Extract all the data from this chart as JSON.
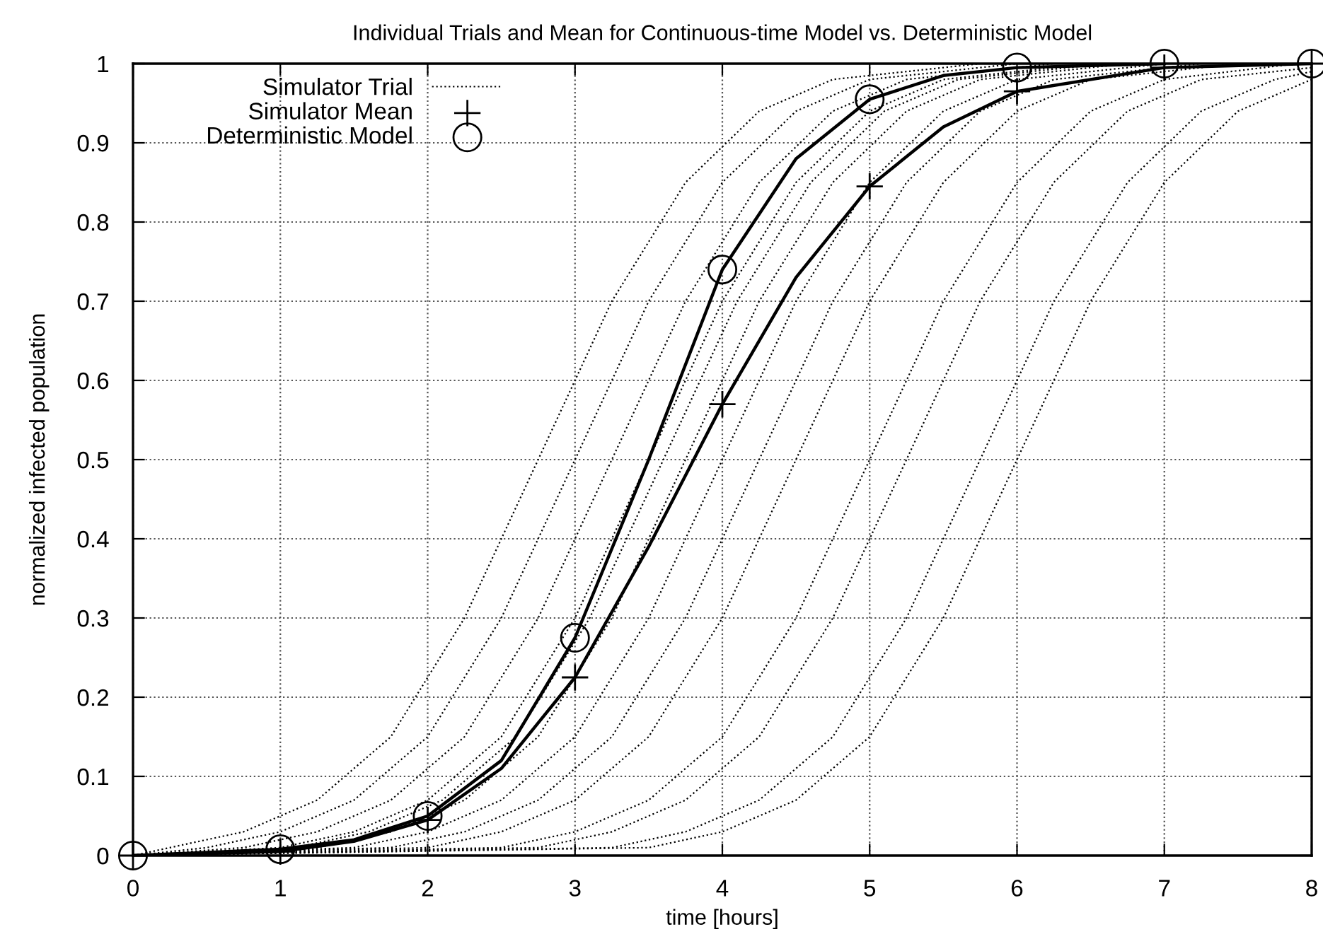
{
  "chart_data": {
    "type": "line",
    "title": "Individual Trials and Mean for Continuous-time Model vs. Deterministic Model",
    "xlabel": "time [hours]",
    "ylabel": "normalized infected population",
    "xlim": [
      0,
      8
    ],
    "ylim": [
      0,
      1
    ],
    "xticks": [
      0,
      1,
      2,
      3,
      4,
      5,
      6,
      7,
      8
    ],
    "yticks": [
      0,
      0.1,
      0.2,
      0.3,
      0.4,
      0.5,
      0.6,
      0.7,
      0.8,
      0.9,
      1
    ],
    "grid": true,
    "legend": "top left",
    "series": [
      {
        "name": "Simulator Trial",
        "line_style": "dotted",
        "color": "#000000",
        "x": [
          0,
          0.25,
          0.75,
          1.25,
          1.75,
          2.25,
          2.75,
          3.25,
          3.75,
          4.25,
          4.75,
          5.75
        ],
        "values": [
          0,
          0.01,
          0.03,
          0.07,
          0.15,
          0.3,
          0.5,
          0.7,
          0.85,
          0.94,
          0.98,
          1.0
        ]
      },
      {
        "line_style": "dotted",
        "color": "#000000",
        "x": [
          0,
          0.5,
          1,
          1.5,
          2,
          2.5,
          3,
          3.5,
          4,
          4.5,
          5,
          6
        ],
        "values": [
          0,
          0.01,
          0.03,
          0.07,
          0.15,
          0.3,
          0.5,
          0.7,
          0.85,
          0.94,
          0.98,
          1.0
        ]
      },
      {
        "line_style": "dotted",
        "color": "#000000",
        "x": [
          0,
          0.75,
          1.25,
          1.75,
          2.25,
          2.75,
          3.25,
          3.75,
          4.25,
          4.75,
          5.25,
          6.25
        ],
        "values": [
          0,
          0.01,
          0.03,
          0.07,
          0.15,
          0.3,
          0.5,
          0.7,
          0.85,
          0.94,
          0.98,
          1.0
        ]
      },
      {
        "line_style": "dotted",
        "color": "#000000",
        "x": [
          0,
          1,
          1.5,
          2,
          2.5,
          3,
          3.5,
          4,
          4.5,
          5,
          5.5,
          6.5
        ],
        "values": [
          0,
          0.01,
          0.03,
          0.07,
          0.15,
          0.3,
          0.5,
          0.7,
          0.85,
          0.94,
          0.98,
          1.0
        ]
      },
      {
        "line_style": "dotted",
        "color": "#000000",
        "x": [
          0,
          1.1,
          1.6,
          2.1,
          2.6,
          3.1,
          3.6,
          4.1,
          4.6,
          5.1,
          5.6,
          6.6
        ],
        "values": [
          0,
          0.01,
          0.03,
          0.07,
          0.15,
          0.3,
          0.5,
          0.7,
          0.85,
          0.94,
          0.98,
          1.0
        ]
      },
      {
        "line_style": "dotted",
        "color": "#000000",
        "x": [
          0,
          1.25,
          1.75,
          2.25,
          2.75,
          3.25,
          3.75,
          4.25,
          4.75,
          5.25,
          5.75,
          6.75
        ],
        "values": [
          0,
          0.01,
          0.03,
          0.07,
          0.15,
          0.3,
          0.5,
          0.7,
          0.85,
          0.94,
          0.98,
          1.0
        ]
      },
      {
        "line_style": "dotted",
        "color": "#000000",
        "x": [
          0,
          1.5,
          2,
          2.5,
          3,
          3.5,
          4,
          4.5,
          5,
          5.5,
          6,
          7
        ],
        "values": [
          0,
          0.01,
          0.03,
          0.07,
          0.15,
          0.3,
          0.5,
          0.7,
          0.85,
          0.94,
          0.98,
          1.0
        ]
      },
      {
        "line_style": "dotted",
        "color": "#000000",
        "x": [
          0,
          1.75,
          2.25,
          2.75,
          3.25,
          3.75,
          4.25,
          4.75,
          5.25,
          5.75,
          6.25,
          7.25
        ],
        "values": [
          0,
          0.01,
          0.03,
          0.07,
          0.15,
          0.3,
          0.5,
          0.7,
          0.85,
          0.94,
          0.98,
          1.0
        ]
      },
      {
        "line_style": "dotted",
        "color": "#000000",
        "x": [
          0,
          2,
          2.5,
          3,
          3.5,
          4,
          4.5,
          5,
          5.5,
          6,
          6.5,
          7.5
        ],
        "values": [
          0,
          0.01,
          0.03,
          0.07,
          0.15,
          0.3,
          0.5,
          0.7,
          0.85,
          0.94,
          0.98,
          1.0
        ]
      },
      {
        "line_style": "dotted",
        "color": "#000000",
        "x": [
          0,
          2.5,
          3,
          3.5,
          4,
          4.5,
          5,
          5.5,
          6,
          6.5,
          7,
          7.9
        ],
        "values": [
          0,
          0.01,
          0.03,
          0.07,
          0.15,
          0.3,
          0.5,
          0.7,
          0.85,
          0.94,
          0.98,
          1.0
        ]
      },
      {
        "line_style": "dotted",
        "color": "#000000",
        "x": [
          0,
          2.75,
          3.25,
          3.75,
          4.25,
          4.75,
          5.25,
          5.75,
          6.25,
          6.75,
          7.25,
          8
        ],
        "values": [
          0,
          0.01,
          0.03,
          0.07,
          0.15,
          0.3,
          0.5,
          0.7,
          0.85,
          0.94,
          0.98,
          0.995
        ]
      },
      {
        "line_style": "dotted",
        "color": "#000000",
        "x": [
          0,
          3.25,
          3.75,
          4.25,
          4.75,
          5.25,
          5.75,
          6.25,
          6.75,
          7.25,
          7.75,
          8
        ],
        "values": [
          0,
          0.01,
          0.03,
          0.07,
          0.15,
          0.3,
          0.5,
          0.7,
          0.85,
          0.94,
          0.98,
          0.99
        ]
      },
      {
        "line_style": "dotted",
        "color": "#000000",
        "x": [
          0,
          3.5,
          4,
          4.5,
          5,
          5.5,
          6,
          6.5,
          7,
          7.5,
          8
        ],
        "values": [
          0,
          0.01,
          0.03,
          0.07,
          0.15,
          0.3,
          0.5,
          0.7,
          0.85,
          0.94,
          0.98
        ]
      },
      {
        "type": "line",
        "line_style": "solid",
        "color": "#000000",
        "x": [
          0,
          1,
          1.5,
          2,
          2.5,
          3,
          3.5,
          4,
          4.5,
          5,
          5.5,
          6,
          7,
          8
        ],
        "values": [
          0,
          0.005,
          0.018,
          0.045,
          0.11,
          0.225,
          0.39,
          0.57,
          0.73,
          0.845,
          0.92,
          0.965,
          0.995,
          1.0
        ]
      },
      {
        "type": "line",
        "line_style": "solid",
        "color": "#000000",
        "x": [
          0,
          1,
          1.5,
          2,
          2.5,
          3,
          3.5,
          4,
          4.5,
          5,
          5.5,
          6,
          7
        ],
        "values": [
          0,
          0.008,
          0.02,
          0.05,
          0.12,
          0.275,
          0.5,
          0.74,
          0.88,
          0.955,
          0.985,
          0.995,
          1.0
        ]
      },
      {
        "name": "Simulator Mean",
        "type": "scatter",
        "marker": "cross",
        "color": "#000000",
        "x": [
          0,
          1,
          2,
          3,
          4,
          5,
          6,
          7,
          8
        ],
        "values": [
          0,
          0.005,
          0.045,
          0.225,
          0.57,
          0.845,
          0.965,
          0.995,
          1.0
        ]
      },
      {
        "name": "Deterministic Model",
        "type": "scatter",
        "marker": "circle",
        "color": "#000000",
        "x": [
          0,
          1,
          2,
          3,
          4,
          5,
          6,
          7,
          8
        ],
        "values": [
          0,
          0.008,
          0.05,
          0.275,
          0.74,
          0.955,
          0.995,
          1.0,
          1.0
        ]
      }
    ]
  }
}
